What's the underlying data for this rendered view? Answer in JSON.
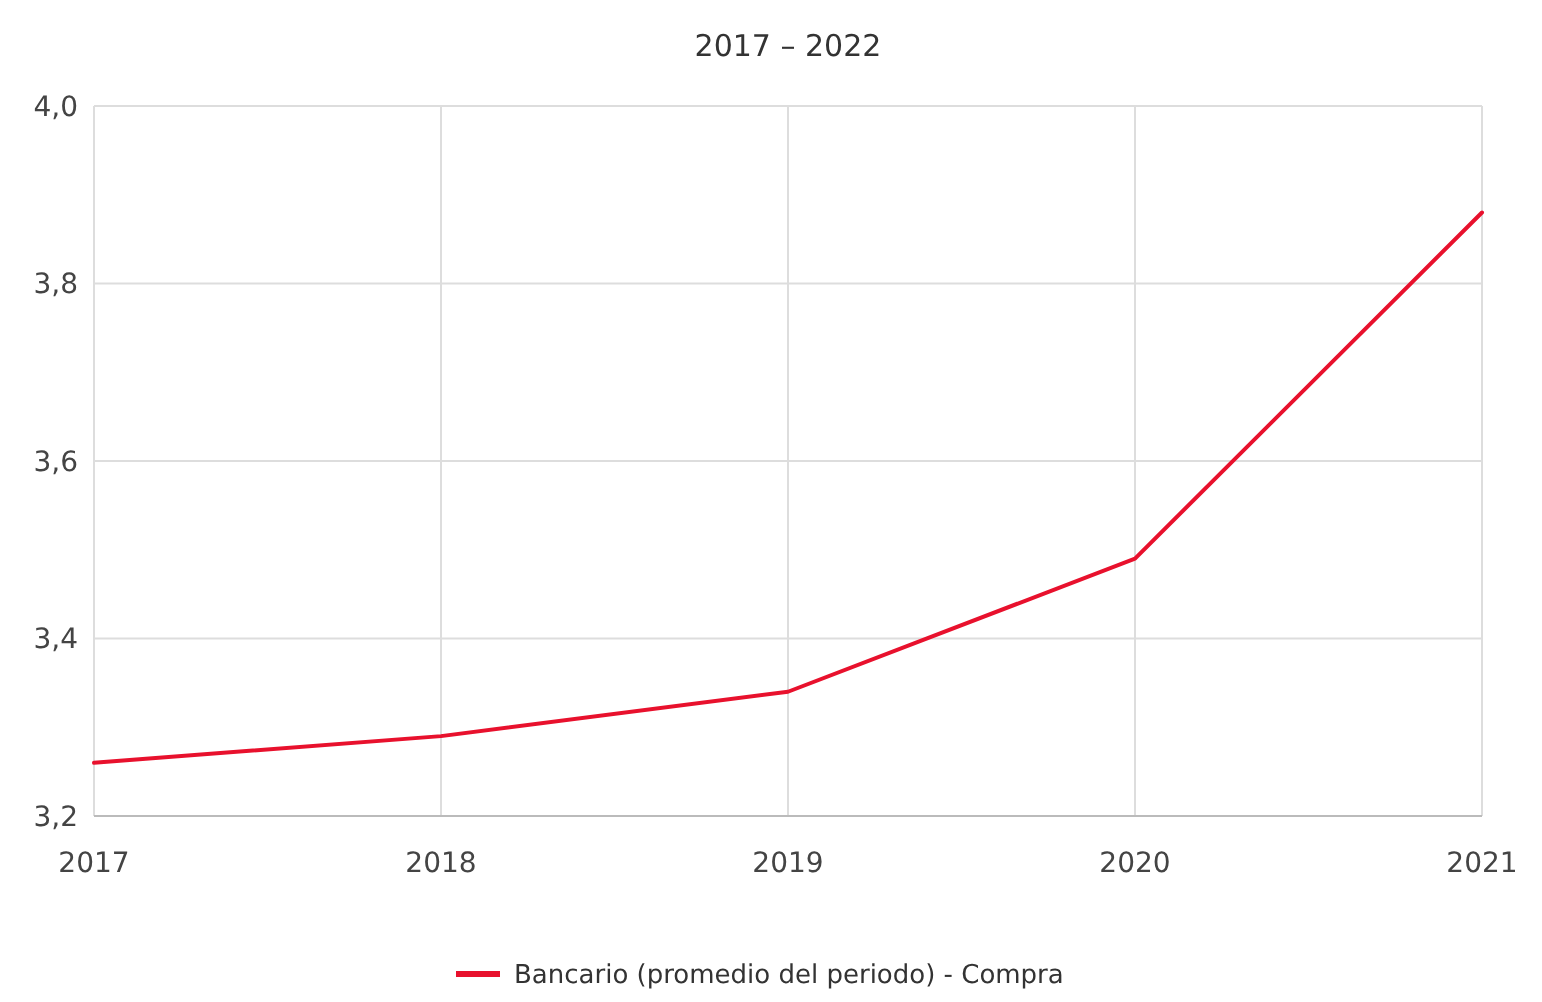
{
  "chart_data": {
    "type": "line",
    "title": "2017 – 2022",
    "categories": [
      "2017",
      "2018",
      "2019",
      "2020",
      "2021"
    ],
    "series": [
      {
        "name": "Bancario (promedio del periodo) - Compra",
        "color": "#e8112d",
        "values": [
          3.26,
          3.29,
          3.34,
          3.49,
          3.88
        ]
      }
    ],
    "ylim": [
      3.2,
      4.0
    ],
    "yticks": [
      {
        "value": 3.2,
        "label": "3,2"
      },
      {
        "value": 3.4,
        "label": "3,4"
      },
      {
        "value": 3.6,
        "label": "3,6"
      },
      {
        "value": 3.8,
        "label": "3,8"
      },
      {
        "value": 4.0,
        "label": "4,0"
      }
    ],
    "grid": true,
    "legend": "bottom",
    "marker": "none",
    "line_style": "solid"
  }
}
